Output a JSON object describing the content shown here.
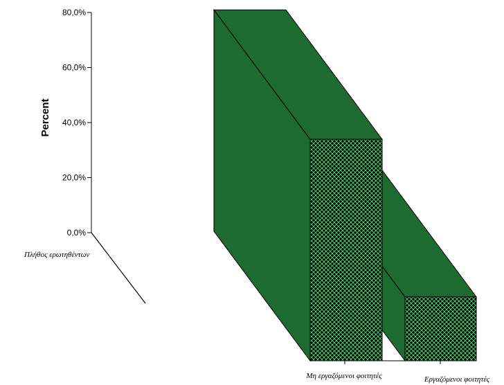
{
  "chart_data": {
    "type": "bar",
    "title": "",
    "ylabel": "Percent",
    "zlabel": "Πλήθος ερωτηθέντων",
    "ylim": [
      0,
      80
    ],
    "yticks": [
      0,
      20,
      40,
      60,
      80
    ],
    "ytick_labels": [
      "0,0%",
      "20,0%",
      "40,0%",
      "60,0%",
      "80,0%"
    ],
    "categories": [
      "Μη εργαζόμενοι φοιτητές",
      "Εργαζόμενοι φοιτητές"
    ],
    "values": [
      78.0,
      22.5
    ],
    "bar_color": "#1e6b32",
    "pattern_color": "#4fd06a"
  }
}
